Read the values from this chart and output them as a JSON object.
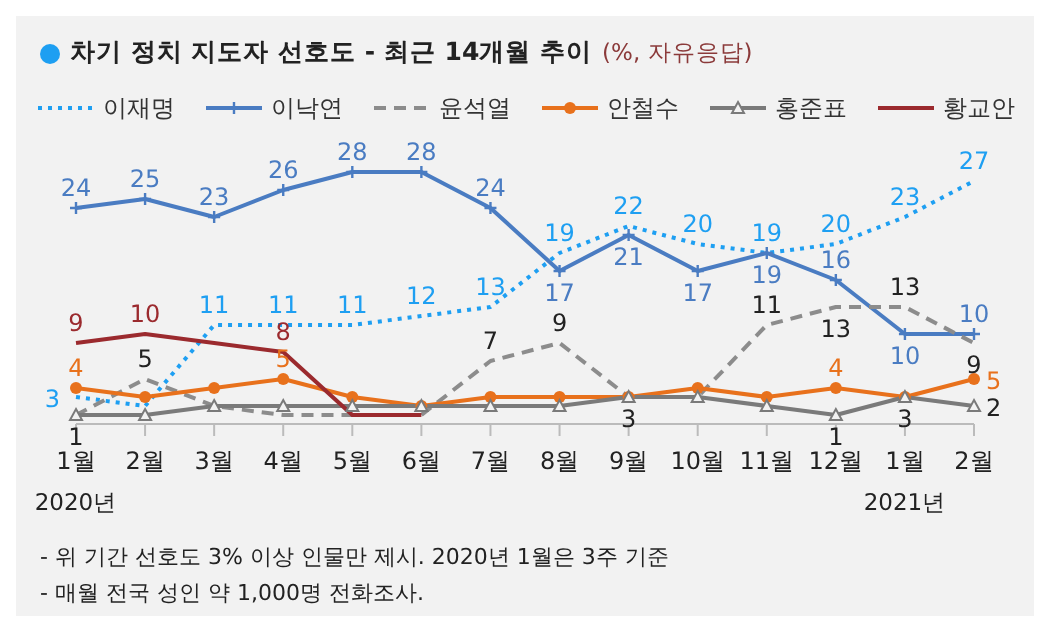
{
  "chart_data": {
    "type": "line",
    "title": "차기 정치 지도자 선호도 - 최근 14개월 추이",
    "subtitle": "(%, 자유응답)",
    "categories": [
      "1월",
      "2월",
      "3월",
      "4월",
      "5월",
      "6월",
      "7월",
      "8월",
      "9월",
      "10월",
      "11월",
      "12월",
      "1월",
      "2월"
    ],
    "series": [
      {
        "name": "이재명",
        "color": "#1e9ff2",
        "line_style": "dotted",
        "marker": "none",
        "values": [
          3,
          2,
          11,
          11,
          11,
          12,
          13,
          19,
          22,
          20,
          19,
          20,
          23,
          27
        ],
        "value_labels": [
          "3",
          null,
          "11",
          "11",
          "11",
          "12",
          "13",
          "19",
          "22",
          "20",
          "19",
          "20",
          "23",
          "27"
        ]
      },
      {
        "name": "이낙연",
        "color": "#4a7cc2",
        "line_style": "solid",
        "marker": "cross",
        "values": [
          24,
          25,
          23,
          26,
          28,
          28,
          24,
          17,
          21,
          17,
          19,
          16,
          10,
          10
        ],
        "value_labels": [
          "24",
          "25",
          "23",
          "26",
          "28",
          "28",
          "24",
          "17",
          "21",
          "17",
          "19",
          "16",
          "10",
          "10"
        ]
      },
      {
        "name": "윤석열",
        "color": "#8c8c8c",
        "line_style": "dashed",
        "marker": "none",
        "values": [
          1,
          5,
          2,
          1,
          1,
          1,
          7,
          9,
          3,
          3,
          11,
          13,
          13,
          9
        ],
        "value_labels": [
          null,
          "5",
          null,
          null,
          null,
          null,
          "7",
          "9",
          null,
          null,
          "11",
          "13",
          "13",
          "9"
        ]
      },
      {
        "name": "안철수",
        "color": "#e8711c",
        "line_style": "solid",
        "marker": "circle",
        "values": [
          4,
          3,
          4,
          5,
          3,
          2,
          3,
          3,
          3,
          4,
          3,
          4,
          3,
          5
        ],
        "value_labels": [
          "4",
          null,
          null,
          "5",
          null,
          null,
          null,
          null,
          null,
          null,
          null,
          "4",
          null,
          "5"
        ]
      },
      {
        "name": "홍준표",
        "color": "#7a7a7a",
        "line_style": "solid",
        "marker": "triangle",
        "values": [
          1,
          1,
          2,
          2,
          2,
          2,
          2,
          2,
          3,
          3,
          2,
          1,
          3,
          2
        ],
        "value_labels": [
          "1",
          null,
          null,
          null,
          null,
          null,
          null,
          null,
          "3",
          null,
          null,
          "1",
          "3",
          "2"
        ]
      },
      {
        "name": "황교안",
        "color": "#9b2a2e",
        "line_style": "solid",
        "marker": "none",
        "values": [
          9,
          10,
          9,
          8,
          1,
          1,
          null,
          null,
          null,
          null,
          null,
          null,
          null,
          null
        ],
        "value_labels": [
          "9",
          "10",
          null,
          "8",
          null,
          null,
          null,
          null,
          null,
          null,
          null,
          null,
          null,
          null
        ]
      }
    ],
    "legend": "top",
    "grid": false,
    "annotations": [
      "2020년",
      "2021년",
      "- 위 기간 선호도 3% 이상 인물만 제시. 2020년 1월은 3주 기준",
      "- 매월 전국 성인 약 1,000명 전화조사."
    ]
  }
}
